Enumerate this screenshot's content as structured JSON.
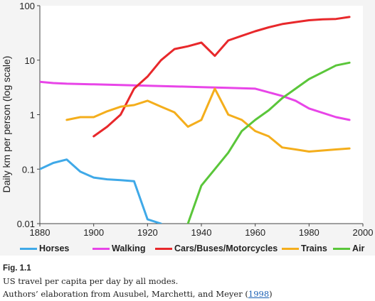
{
  "chart_data": {
    "type": "line",
    "title": "",
    "xlabel": "",
    "ylabel": "Daily km per person (log scale)",
    "xlim": [
      1880,
      2000
    ],
    "ylim": [
      0.01,
      100
    ],
    "yscale": "log",
    "x_ticks": [
      "1880",
      "1900",
      "1920",
      "1940",
      "1960",
      "1980",
      "2000"
    ],
    "y_ticks": [
      "0.01",
      "0.1",
      "1",
      "10",
      "100"
    ],
    "grid": false,
    "legend_position": "bottom",
    "series": [
      {
        "name": "Horses",
        "color": "#3fa9e8",
        "x": [
          1880,
          1885,
          1890,
          1895,
          1900,
          1905,
          1910,
          1915,
          1920,
          1925
        ],
        "y": [
          0.1,
          0.13,
          0.15,
          0.09,
          0.07,
          0.065,
          0.063,
          0.06,
          0.012,
          0.01
        ]
      },
      {
        "name": "Walking",
        "color": "#e845e8",
        "x": [
          1880,
          1885,
          1890,
          1900,
          1910,
          1920,
          1930,
          1940,
          1950,
          1960,
          1970,
          1975,
          1980,
          1990,
          1995
        ],
        "y": [
          4.0,
          3.8,
          3.7,
          3.6,
          3.5,
          3.4,
          3.3,
          3.2,
          3.1,
          3.0,
          2.2,
          1.8,
          1.3,
          0.9,
          0.8
        ]
      },
      {
        "name": "Cars/Buses/Motorcycles",
        "color": "#e8282b",
        "x": [
          1900,
          1905,
          1910,
          1915,
          1920,
          1925,
          1930,
          1935,
          1940,
          1945,
          1950,
          1955,
          1960,
          1965,
          1970,
          1975,
          1980,
          1985,
          1990,
          1995
        ],
        "y": [
          0.4,
          0.6,
          1.0,
          3.0,
          5.0,
          10.0,
          16.0,
          18.0,
          21.0,
          12.0,
          23.0,
          28.0,
          34.0,
          40.0,
          46.0,
          50.0,
          54.0,
          56.0,
          57.0,
          62.0
        ]
      },
      {
        "name": "Trains",
        "color": "#f4ae1c",
        "x": [
          1890,
          1895,
          1900,
          1905,
          1910,
          1915,
          1920,
          1925,
          1930,
          1935,
          1940,
          1945,
          1950,
          1955,
          1960,
          1965,
          1970,
          1975,
          1980,
          1985,
          1990,
          1995
        ],
        "y": [
          0.8,
          0.9,
          0.9,
          1.15,
          1.4,
          1.5,
          1.8,
          1.4,
          1.1,
          0.6,
          0.8,
          3.0,
          1.0,
          0.8,
          0.5,
          0.4,
          0.25,
          0.23,
          0.21,
          0.22,
          0.23,
          0.24
        ]
      },
      {
        "name": "Air",
        "color": "#5ac63a",
        "x": [
          1935,
          1940,
          1945,
          1950,
          1955,
          1960,
          1965,
          1970,
          1975,
          1980,
          1985,
          1990,
          1995
        ],
        "y": [
          0.01,
          0.05,
          0.1,
          0.2,
          0.5,
          0.8,
          1.2,
          2.0,
          3.0,
          4.5,
          6.0,
          8.0,
          9.0
        ]
      }
    ]
  },
  "caption": {
    "figure_label": "Fig. 1.1",
    "description": "US travel per capita per day by all modes.",
    "source_prefix": "Authors’ elaboration from Ausubel, Marchetti, and Meyer (",
    "source_link": "1998",
    "source_suffix": ")"
  }
}
